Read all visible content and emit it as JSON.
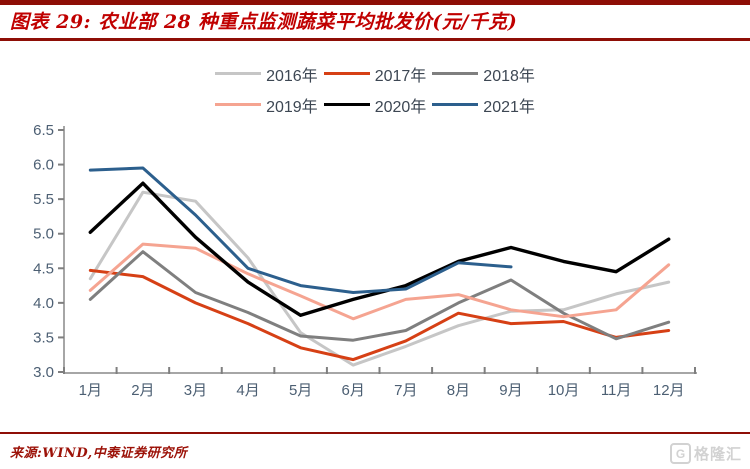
{
  "title": {
    "prefix": "图表 29:",
    "text": "农业部 28 种重点监测蔬菜平均批发价(元/千克)"
  },
  "source": "来源:WIND,中泰证券研究所",
  "watermark": {
    "icon": "G",
    "text": "格隆汇"
  },
  "colors": {
    "title_red": "#c00000",
    "rule_red": "#8e0e06",
    "axis_line": "#a6a6a6",
    "tick": "#7f7f7f",
    "axis_label": "#4c5f73",
    "legend_label": "#3d4753"
  },
  "chart_data": {
    "type": "line",
    "title": "农业部 28 种重点监测蔬菜平均批发价(元/千克)",
    "xlabel": "",
    "ylabel": "",
    "ylim": [
      3.0,
      6.5
    ],
    "ytick_step": 0.5,
    "grid": false,
    "legend_position": "top",
    "categories": [
      "1月",
      "2月",
      "3月",
      "4月",
      "5月",
      "6月",
      "7月",
      "8月",
      "9月",
      "10月",
      "11月",
      "12月"
    ],
    "series": [
      {
        "name": "2016年",
        "color": "#c6c6c6",
        "values": [
          4.35,
          5.6,
          5.47,
          4.65,
          3.57,
          3.1,
          3.37,
          3.67,
          3.88,
          3.9,
          4.13,
          4.3
        ]
      },
      {
        "name": "2017年",
        "color": "#d64015",
        "values": [
          4.47,
          4.38,
          4.0,
          3.7,
          3.35,
          3.18,
          3.45,
          3.85,
          3.7,
          3.73,
          3.5,
          3.6
        ]
      },
      {
        "name": "2018年",
        "color": "#7f7f7f",
        "values": [
          4.05,
          4.74,
          4.15,
          3.86,
          3.52,
          3.46,
          3.6,
          4.0,
          4.33,
          3.85,
          3.48,
          3.72
        ]
      },
      {
        "name": "2019年",
        "color": "#f5a491",
        "values": [
          4.18,
          4.85,
          4.79,
          4.42,
          4.1,
          3.77,
          4.05,
          4.12,
          3.9,
          3.8,
          3.9,
          4.55
        ]
      },
      {
        "name": "2020年",
        "color": "#000000",
        "values": [
          5.02,
          5.73,
          4.95,
          4.3,
          3.82,
          4.05,
          4.25,
          4.6,
          4.8,
          4.6,
          4.45,
          4.92
        ]
      },
      {
        "name": "2021年",
        "color": "#2c5f8d",
        "values": [
          5.92,
          5.95,
          5.27,
          4.5,
          4.25,
          4.15,
          4.2,
          4.58,
          4.52,
          null,
          null,
          null
        ]
      }
    ]
  }
}
